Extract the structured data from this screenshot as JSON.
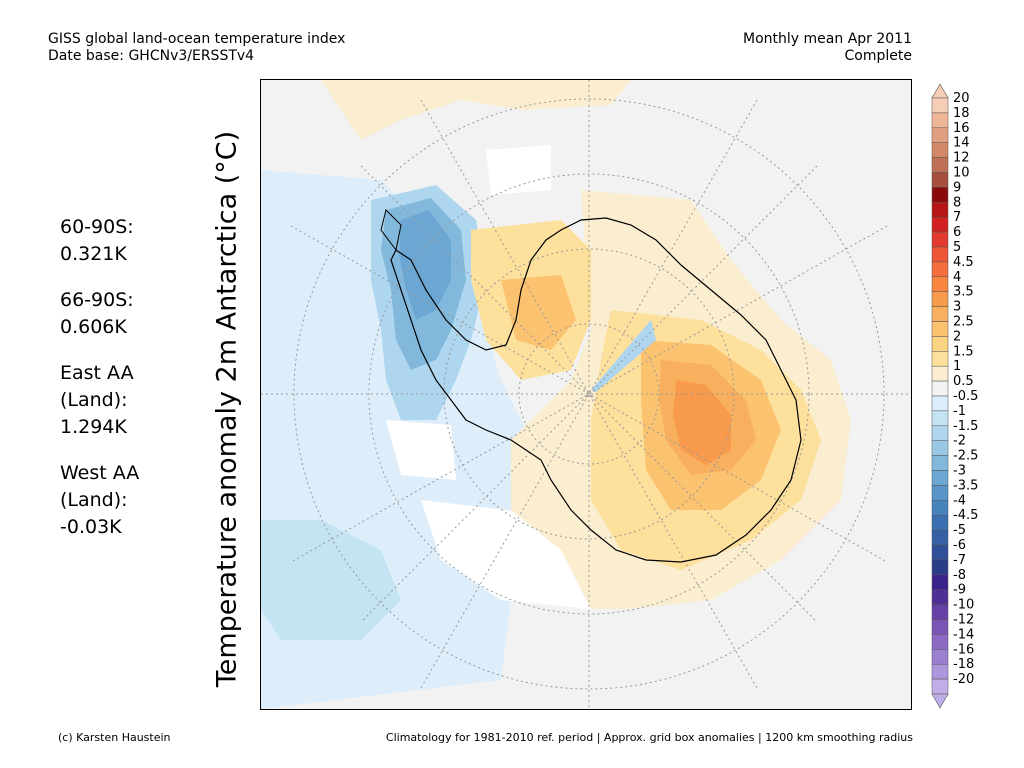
{
  "header": {
    "title_line1": "GISS global land-ocean temperature index",
    "title_line2": "Date base: GHCNv3/ERSSTv4",
    "period_line1": "Monthly mean Apr 2011",
    "period_line2": "Complete"
  },
  "stats": [
    {
      "label": "60-90S:",
      "value": "0.321K"
    },
    {
      "label": "66-90S:",
      "value": "0.606K"
    },
    {
      "label": "East AA\n(Land):",
      "value": "1.294K"
    },
    {
      "label": "West AA\n(Land):",
      "value": "-0.03K"
    }
  ],
  "map": {
    "variable_label": "Temperature anomaly 2m Antarctica (°C)",
    "projection": "south polar stereographic"
  },
  "colorbar": {
    "ticks": [
      "20",
      "18",
      "16",
      "14",
      "12",
      "10",
      "9",
      "8",
      "7",
      "6",
      "5",
      "4.5",
      "4",
      "3.5",
      "3",
      "2.5",
      "2",
      "1.5",
      "1",
      "0.5",
      "-0.5",
      "-1",
      "-1.5",
      "-2",
      "-2.5",
      "-3",
      "-3.5",
      "-4",
      "-4.5",
      "-5",
      "-6",
      "-7",
      "-8",
      "-9",
      "-10",
      "-12",
      "-14",
      "-16",
      "-18",
      "-20"
    ],
    "colors": [
      "#f6cdb6",
      "#eeb597",
      "#e29f80",
      "#d3886a",
      "#c07055",
      "#a65040",
      "#8a0a0a",
      "#b71515",
      "#d22020",
      "#e33a30",
      "#ef5636",
      "#f46d3a",
      "#f7843f",
      "#f89a4c",
      "#f9b05e",
      "#fbc26f",
      "#fcd283",
      "#fde09c",
      "#faedd0",
      "#f2f2f2",
      "#ddeefa",
      "#c4e3f3",
      "#aed6ee",
      "#98c8e5",
      "#81b8dc",
      "#6ba7d2",
      "#5995c8",
      "#4682bc",
      "#3c6fb2",
      "#3560a6",
      "#2d4f98",
      "#283c88",
      "#3a238a",
      "#4f2e96",
      "#6541a6",
      "#7955b6",
      "#8a6ac2",
      "#9c80cf",
      "#ad96db",
      "#c0aee8"
    ],
    "range": [
      -20,
      20
    ]
  },
  "footer": {
    "credit": "(c) Karsten Haustein",
    "note": "Climatology for 1981-2010 ref. period | Approx. grid box anomalies | 1200 km smoothing radius"
  }
}
